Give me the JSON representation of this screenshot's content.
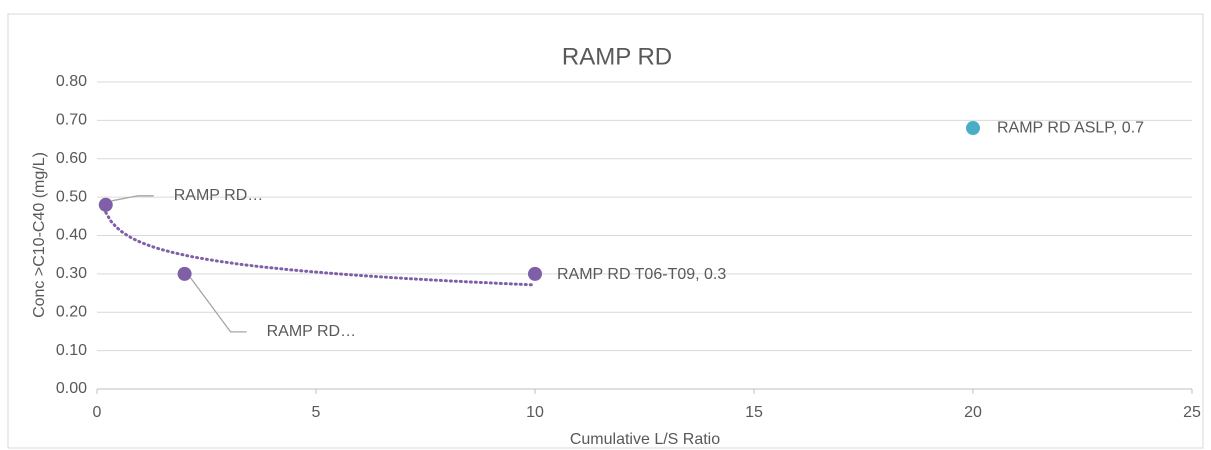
{
  "chart_data": {
    "type": "scatter",
    "title": "RAMP RD",
    "xlabel": "Cumulative L/S Ratio",
    "ylabel": "Conc >C10-C40 (mg/L)",
    "series": [
      {
        "color": "#7f60a8",
        "x": [
          0.2,
          2,
          10
        ],
        "values": [
          0.48,
          0.3,
          0.3
        ],
        "value_labels": [
          "RAMP RD…",
          "RAMP RD…",
          "RAMP RD T06-T09, 0.3"
        ],
        "trendline": "logarithmic"
      },
      {
        "color": "#4bacc6",
        "x": [
          20
        ],
        "values": [
          0.68
        ],
        "value_labels": [
          "RAMP RD ASLP, 0.7"
        ]
      }
    ],
    "xlim": [
      0,
      25
    ],
    "xticks": [
      0,
      5,
      10,
      15,
      20,
      25
    ],
    "ylim": [
      0,
      0.8
    ],
    "yticks": [
      {
        "value": 0,
        "label": "0.00"
      },
      {
        "value": 0.1,
        "label": "0.10"
      },
      {
        "value": 0.2,
        "label": "0.20"
      },
      {
        "value": 0.3,
        "label": "0.30"
      },
      {
        "value": 0.4,
        "label": "0.40"
      },
      {
        "value": 0.5,
        "label": "0.50"
      },
      {
        "value": 0.6,
        "label": "0.60"
      },
      {
        "value": 0.7,
        "label": "0.70"
      },
      {
        "value": 0.8,
        "label": "0.80"
      }
    ],
    "grid": true
  }
}
